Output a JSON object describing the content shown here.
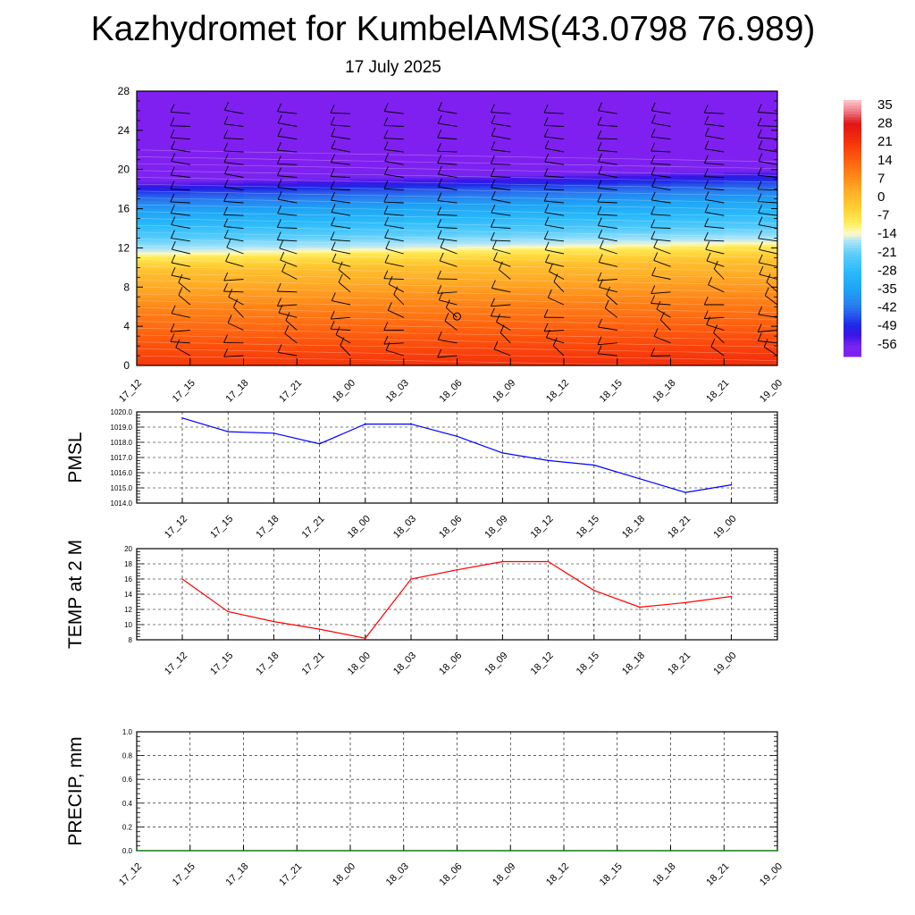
{
  "header": {
    "title": "Kazhydromet for KumbelAMS(43.0798 76.989)",
    "date": "17 July 2025"
  },
  "time_labels": [
    "17_12",
    "17_15",
    "17_18",
    "17_21",
    "18_00",
    "18_03",
    "18_06",
    "18_09",
    "18_12",
    "18_15",
    "18_18",
    "18_21",
    "19_00"
  ],
  "chart_data": [
    {
      "type": "heatmap",
      "name": "temperature-wind-cross-section",
      "x": [
        "17_12",
        "17_15",
        "17_18",
        "17_21",
        "18_00",
        "18_03",
        "18_06",
        "18_09",
        "18_12",
        "18_15",
        "18_18",
        "18_21",
        "19_00"
      ],
      "y_ticks": [
        0,
        4,
        8,
        12,
        16,
        20,
        24,
        28
      ],
      "ylim": [
        0,
        28
      ],
      "colorbar": {
        "labels": [
          "35",
          "28",
          "21",
          "14",
          "7",
          "0",
          "-7",
          "-14",
          "-21",
          "-28",
          "-35",
          "-42",
          "-49",
          "-56"
        ],
        "range": [
          -60,
          38
        ]
      },
      "temperature_profile": {
        "levels": [
          0,
          2,
          4,
          6,
          8,
          10,
          11.5,
          12,
          14,
          16,
          18,
          19.5,
          21,
          22,
          28
        ],
        "values": [
          22,
          18,
          14,
          10,
          5,
          0,
          -8,
          -14,
          -24,
          -33,
          -45,
          -58,
          -60,
          -60,
          -60
        ]
      },
      "wind_barbs": "shown at every time step and level"
    },
    {
      "type": "line",
      "name": "PMSL",
      "ylabel": "PMSL",
      "categories": [
        "17_12",
        "17_15",
        "17_18",
        "17_21",
        "18_00",
        "18_03",
        "18_06",
        "18_09",
        "18_12",
        "18_15",
        "18_18",
        "18_21",
        "19_00"
      ],
      "values": [
        1019.6,
        1018.7,
        1018.6,
        1017.9,
        1019.2,
        1019.2,
        1018.4,
        1017.3,
        1016.8,
        1016.5,
        1015.6,
        1014.7,
        1015.2
      ],
      "ylim": [
        1014.0,
        1020.0
      ],
      "y_ticks": [
        "1014.0",
        "1015.0",
        "1016.0",
        "1017.0",
        "1018.0",
        "1019.0",
        "1020.0"
      ],
      "grid": true,
      "color": "#0000ff"
    },
    {
      "type": "line",
      "name": "TEMP at 2 M",
      "ylabel": "TEMP at 2 M",
      "categories": [
        "17_12",
        "17_15",
        "17_18",
        "17_21",
        "18_00",
        "18_03",
        "18_06",
        "18_09",
        "18_12",
        "18_15",
        "18_18",
        "18_21",
        "19_00"
      ],
      "values": [
        16.0,
        11.7,
        10.4,
        9.4,
        8.2,
        16.0,
        17.2,
        18.3,
        18.3,
        14.5,
        12.3,
        12.9,
        13.7
      ],
      "ylim": [
        8,
        20
      ],
      "y_ticks": [
        "8",
        "10",
        "12",
        "14",
        "16",
        "18",
        "20"
      ],
      "grid": true,
      "color": "#ff0000"
    },
    {
      "type": "line",
      "name": "PRECIP, mm",
      "ylabel": "PRECIP, mm",
      "categories": [
        "17_12",
        "17_15",
        "17_18",
        "17_21",
        "18_00",
        "18_03",
        "18_06",
        "18_09",
        "18_12",
        "18_15",
        "18_18",
        "18_21",
        "19_00"
      ],
      "values": [
        0,
        0,
        0,
        0,
        0,
        0,
        0,
        0,
        0,
        0,
        0,
        0,
        0
      ],
      "ylim": [
        0,
        1
      ],
      "y_ticks": [
        "0.0",
        "0.2",
        "0.4",
        "0.6",
        "0.8",
        "1.0"
      ],
      "grid": true,
      "color": "#008000"
    }
  ]
}
